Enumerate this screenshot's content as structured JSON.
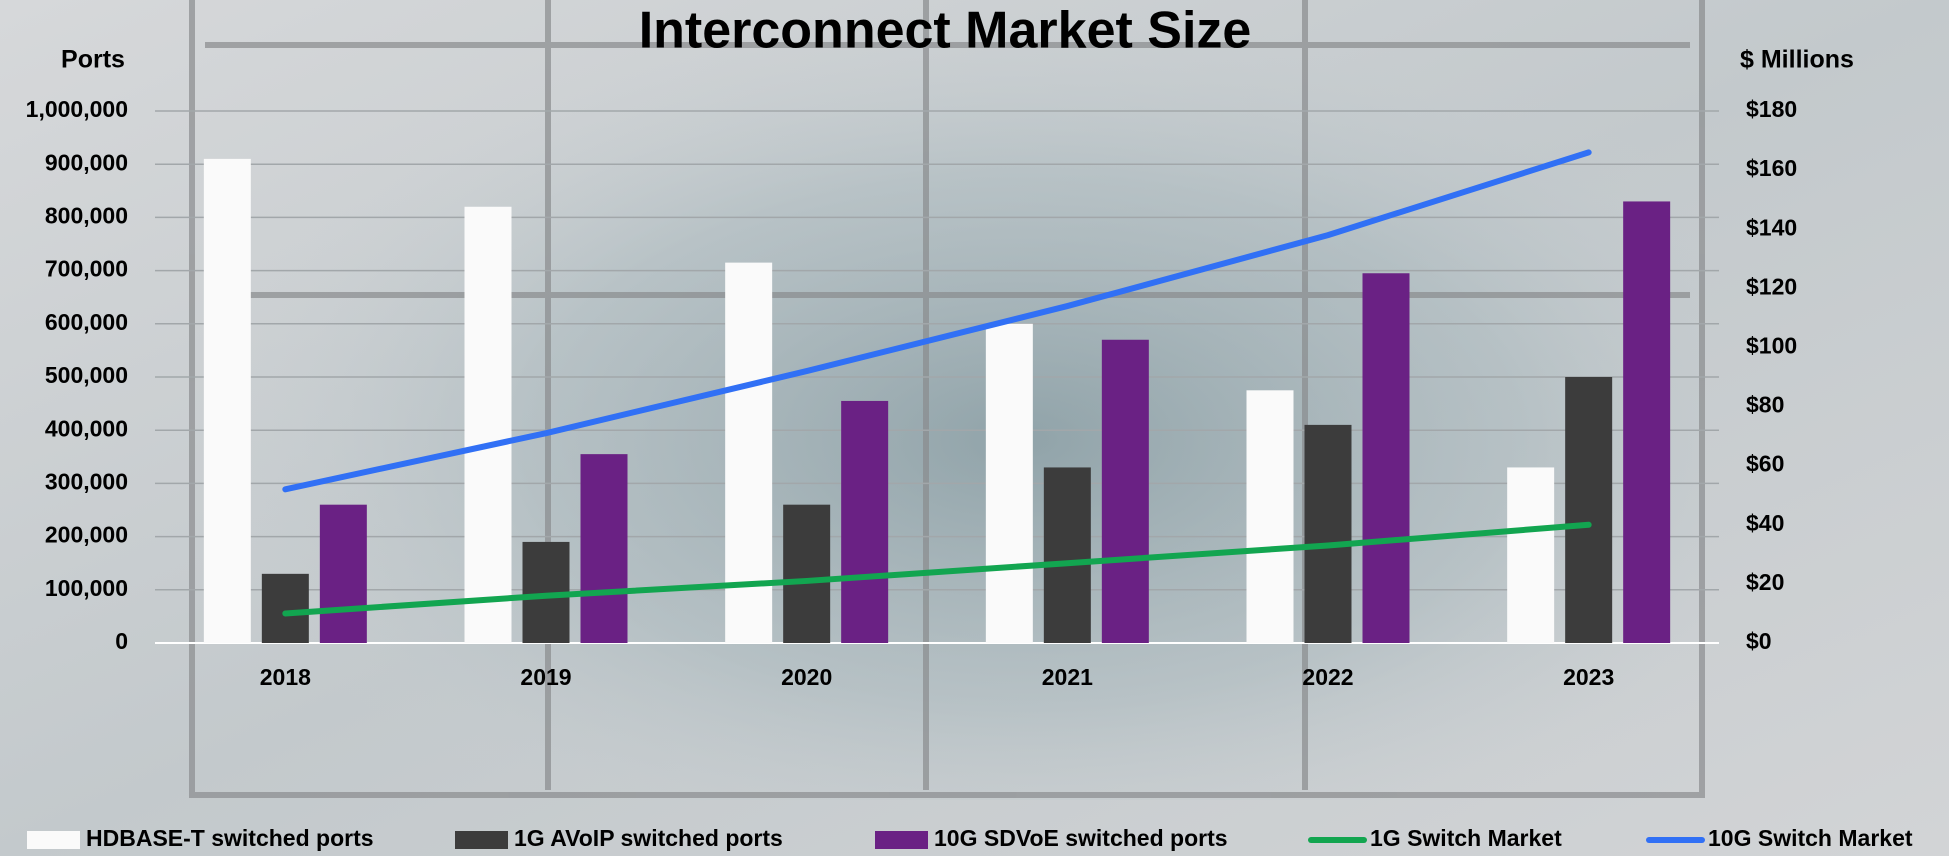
{
  "chart_data": {
    "type": "bar",
    "title": "Interconnect Market Size",
    "y_label": "Ports",
    "y2_label": "$ Millions",
    "categories": [
      "2018",
      "2019",
      "2020",
      "2021",
      "2022",
      "2023"
    ],
    "series": [
      {
        "name": "HDBASE-T switched ports",
        "type": "bar",
        "color": "#fafafa",
        "values": [
          910000,
          820000,
          715000,
          600000,
          475000,
          330000
        ]
      },
      {
        "name": "1G AVoIP switched ports",
        "type": "bar",
        "color": "#3c3c3c",
        "values": [
          130000,
          190000,
          260000,
          330000,
          410000,
          500000
        ]
      },
      {
        "name": "10G SDVoE switched ports",
        "type": "bar",
        "color": "#6a2184",
        "values": [
          260000,
          355000,
          455000,
          570000,
          695000,
          830000
        ]
      },
      {
        "name": "1G Switch Market",
        "type": "line",
        "axis": "y2",
        "color": "#12a550",
        "values": [
          10,
          16,
          21,
          27,
          33,
          40
        ]
      },
      {
        "name": "10G Switch Market",
        "type": "line",
        "axis": "y2",
        "color": "#3170f5",
        "values": [
          52,
          71,
          92,
          114,
          138,
          166
        ]
      }
    ],
    "ylim": [
      0,
      1000000
    ],
    "yticks": [
      0,
      {
        "value": 100000,
        "label": "100,000"
      },
      {
        "value": 200000,
        "label": "200,000"
      },
      {
        "value": 300000,
        "label": "300,000"
      },
      {
        "value": 400000,
        "label": "400,000"
      },
      {
        "value": 500000,
        "label": "500,000"
      },
      {
        "value": 600000,
        "label": "600,000"
      },
      {
        "value": 700000,
        "label": "700,000"
      },
      {
        "value": 800000,
        "label": "800,000"
      },
      {
        "value": 900000,
        "label": "900,000"
      },
      {
        "value": 1000000,
        "label": "1,000,000"
      }
    ],
    "y2lim": [
      0,
      180
    ],
    "y2ticks": [
      {
        "value": 0,
        "label": "$0"
      },
      {
        "value": 20,
        "label": "$20"
      },
      {
        "value": 40,
        "label": "$40"
      },
      {
        "value": 60,
        "label": "$60"
      },
      {
        "value": 80,
        "label": "$80"
      },
      {
        "value": 100,
        "label": "$100"
      },
      {
        "value": 120,
        "label": "$120"
      },
      {
        "value": 140,
        "label": "$140"
      },
      {
        "value": 160,
        "label": "$160"
      },
      {
        "value": 180,
        "label": "$180"
      }
    ],
    "grid": true,
    "legend": "bottom"
  }
}
